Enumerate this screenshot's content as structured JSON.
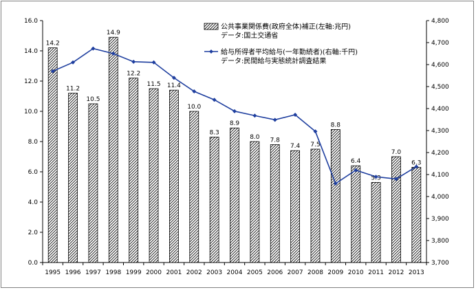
{
  "chart_data": {
    "type": "bar",
    "title": "",
    "xlabel": "",
    "ylabel": "",
    "categories": [
      "1995",
      "1996",
      "1997",
      "1998",
      "1999",
      "2000",
      "2001",
      "2002",
      "2003",
      "2004",
      "2005",
      "2006",
      "2007",
      "2008",
      "2009",
      "2010",
      "2011",
      "2012",
      "2013"
    ],
    "series": [
      {
        "name": "公共事業関係費(政府全体)補正(左軸:兆円)",
        "source": "データ:国土交通省",
        "type": "bar",
        "axis": "left",
        "values": [
          14.2,
          11.2,
          10.5,
          14.9,
          12.2,
          11.5,
          11.4,
          10.0,
          8.3,
          8.9,
          8.0,
          7.8,
          7.4,
          7.5,
          8.8,
          6.4,
          5.3,
          7.0,
          6.3
        ],
        "labels": [
          "14.2",
          "11.2",
          "10.5",
          "14.9",
          "12.2",
          "11.5",
          "11.4",
          "10.0",
          "8.3",
          "8.9",
          "8.0",
          "7.8",
          "7.4",
          "7.5",
          "8.8",
          "6.4",
          "5.3",
          "7.0",
          "6.3"
        ],
        "pattern": "diagonal-hatch"
      },
      {
        "name": "給与所得者平均給与(一年勤続者)(右軸:千円)",
        "source": "データ:民間給与実態統計調査結果",
        "type": "line",
        "axis": "right",
        "color": "#1f3f9f",
        "values": [
          4570,
          4610,
          4673,
          4650,
          4613,
          4610,
          4540,
          4478,
          4440,
          4388,
          4368,
          4349,
          4372,
          4296,
          4059,
          4120,
          4090,
          4080,
          4136
        ]
      }
    ],
    "y_left": {
      "min": 0,
      "max": 16,
      "step": 2,
      "tick_labels": [
        "0.0",
        "2.0",
        "4.0",
        "6.0",
        "8.0",
        "10.0",
        "12.0",
        "14.0",
        "16.0"
      ]
    },
    "y_right": {
      "min": 3700,
      "max": 4800,
      "step": 100,
      "tick_labels": [
        "3,700",
        "3,800",
        "3,900",
        "4,000",
        "4,100",
        "4,200",
        "4,300",
        "4,400",
        "4,500",
        "4,600",
        "4,700",
        "4,800"
      ]
    },
    "grid": false,
    "legend_position": "top-right"
  }
}
